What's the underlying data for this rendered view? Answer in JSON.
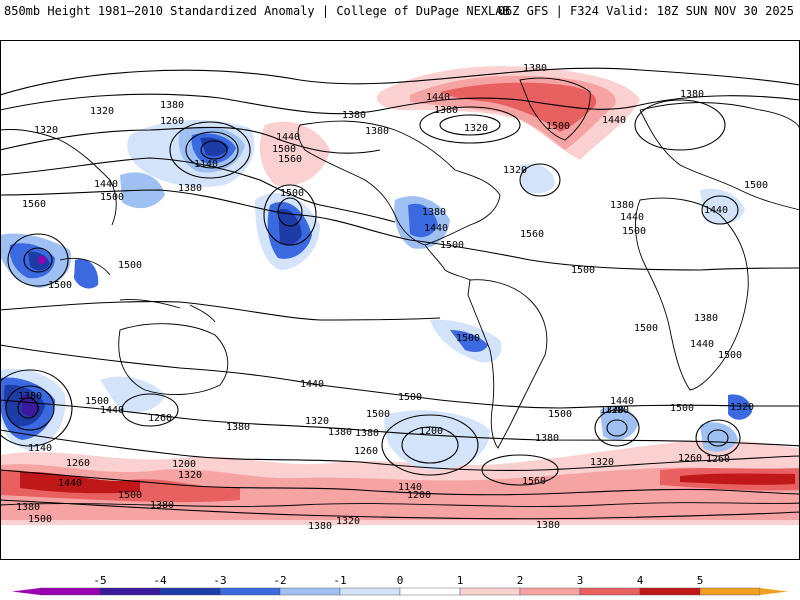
{
  "header": {
    "title": "850mb Height 1981–2010 Standardized Anomaly | College of DuPage NEXLAB",
    "run_info": "06Z GFS | F324 Valid: 18Z SUN NOV 30 2025"
  },
  "contour_labels": [
    "1380",
    "1320",
    "1380",
    "1260",
    "1380",
    "1440",
    "1500",
    "1560",
    "1320",
    "1140",
    "1380",
    "1440",
    "1500",
    "1380",
    "1560",
    "1500",
    "1500",
    "1440",
    "1380",
    "1500",
    "1500",
    "1560",
    "1380",
    "1440",
    "1500",
    "1440",
    "1500",
    "1380",
    "1440",
    "1500",
    "1320",
    "1260",
    "1380",
    "1320",
    "1380",
    "1200",
    "1200",
    "1140",
    "1200",
    "1260",
    "1320",
    "1500",
    "1380",
    "1440",
    "1500",
    "1440",
    "1380",
    "1320",
    "1260",
    "1320",
    "1380",
    "1140",
    "1380",
    "1500",
    "1260",
    "1380",
    "1500",
    "1320",
    "1380",
    "1380",
    "1560",
    "1500",
    "1440",
    "1380",
    "1320",
    "1440",
    "1500",
    "1500",
    "1380",
    "1440",
    "1500",
    "1500",
    "1440",
    "1380",
    "1320",
    "1260",
    "1500",
    "1500"
  ],
  "colorbar": {
    "ticks": [
      "-5",
      "-4",
      "-3",
      "-2",
      "-1",
      "0",
      "1",
      "2",
      "3",
      "4",
      "5"
    ],
    "colors": [
      "#9a00b0",
      "#3a1a9c",
      "#1e3ca8",
      "#3b6ae0",
      "#9fc0f2",
      "#d2e3fa",
      "#ffffff",
      "#fbd0d0",
      "#f6a3a3",
      "#e86060",
      "#c01818",
      "#f0a020"
    ]
  }
}
